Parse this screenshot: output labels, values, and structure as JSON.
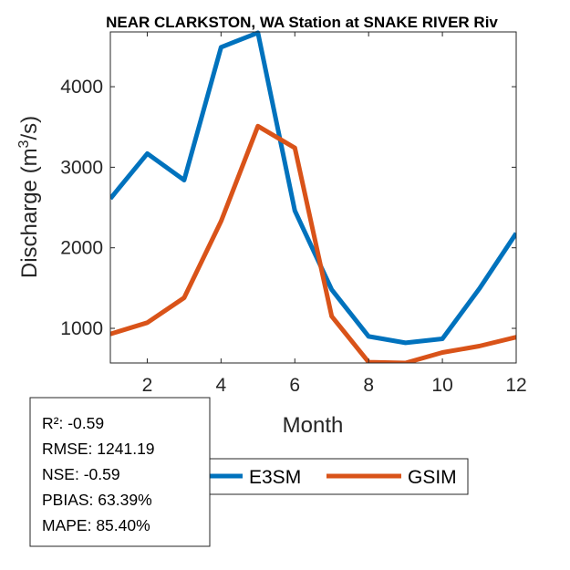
{
  "chart_data": {
    "type": "line",
    "title": "NEAR CLARKSTON, WA  Station at  SNAKE RIVER  Riv",
    "xlabel": "Month",
    "ylabel_main": "Discharge (m",
    "ylabel_sup": "3",
    "ylabel_tail": "/s)",
    "xlim": [
      1,
      12
    ],
    "ylim": [
      570,
      4680
    ],
    "xticks": [
      2,
      4,
      6,
      8,
      10,
      12
    ],
    "yticks": [
      1000,
      2000,
      3000,
      4000
    ],
    "x": [
      1,
      2,
      3,
      4,
      5,
      6,
      7,
      8,
      9,
      10,
      11,
      12
    ],
    "series": [
      {
        "name": "E3SM",
        "color": "#0072BD",
        "values": [
          2610,
          3170,
          2840,
          4490,
          4670,
          2460,
          1480,
          900,
          820,
          870,
          1490,
          2180
        ]
      },
      {
        "name": "GSIM",
        "color": "#D95319",
        "values": [
          930,
          1070,
          1380,
          2330,
          3510,
          3240,
          1150,
          580,
          570,
          700,
          780,
          890
        ]
      }
    ],
    "stats": [
      "R²: -0.59",
      "RMSE: 1241.19",
      "NSE: -0.59",
      "PBIAS: 63.39%",
      "MAPE: 85.40%"
    ]
  }
}
